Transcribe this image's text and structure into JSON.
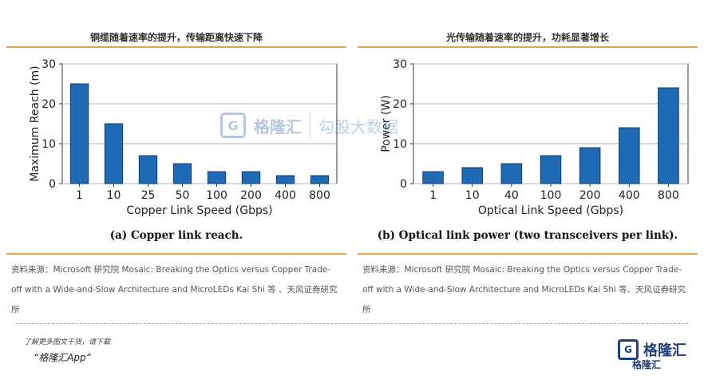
{
  "left": {
    "title": "铜缆随着速率的提升，传输距离快速下降",
    "caption": "(a) Copper link reach.",
    "source": "资料来源：Microsoft  研究院 Mosaic: Breaking the Optics versus Copper Trade-off with a Wide-and-Slow Architecture and MicroLEDs Kai Shi 等  、天风证券研究所"
  },
  "right": {
    "title": "光传输随着速率的提升，功耗显著增长",
    "caption": "(b) Optical link power (two transceivers per link).",
    "source": "资料来源：Microsoft  研究院 Mosaic: Breaking the Optics versus Copper Trade-off with a Wide-and-Slow Architecture and MicroLEDs Kai Shi 等、天风证券研究所"
  },
  "watermark": {
    "logo_text": "格隆汇",
    "sub_text": "勾股大数据"
  },
  "footer": {
    "promo_line1": "了解更多图文干货，请下载",
    "promo_line2": "“格隆汇App”",
    "logo_text": "格隆汇",
    "logo_sub": "格隆汇"
  },
  "colors": {
    "bar": "#1f6ab4",
    "bar_edge": "#0f3f70",
    "rule": "#e2a04a",
    "grid": "#b0b4bb"
  },
  "chart_data": [
    {
      "type": "bar",
      "categories": [
        "1",
        "10",
        "25",
        "50",
        "100",
        "200",
        "400",
        "800"
      ],
      "values": [
        25,
        15,
        7,
        5,
        3,
        3,
        2,
        2
      ],
      "xlabel": "Copper Link Speed (Gbps)",
      "ylabel": "Maximum Reach (m)",
      "ylim": [
        0,
        30
      ],
      "yticks": [
        0,
        10,
        20,
        30
      ],
      "grid": true
    },
    {
      "type": "bar",
      "categories": [
        "1",
        "10",
        "40",
        "100",
        "200",
        "400",
        "800"
      ],
      "values": [
        3,
        4,
        5,
        7,
        9,
        14,
        24
      ],
      "xlabel": "Optical Link Speed (Gbps)",
      "ylabel": "Power (W)",
      "ylim": [
        0,
        30
      ],
      "yticks": [
        0,
        10,
        20,
        30
      ],
      "grid": true
    }
  ]
}
